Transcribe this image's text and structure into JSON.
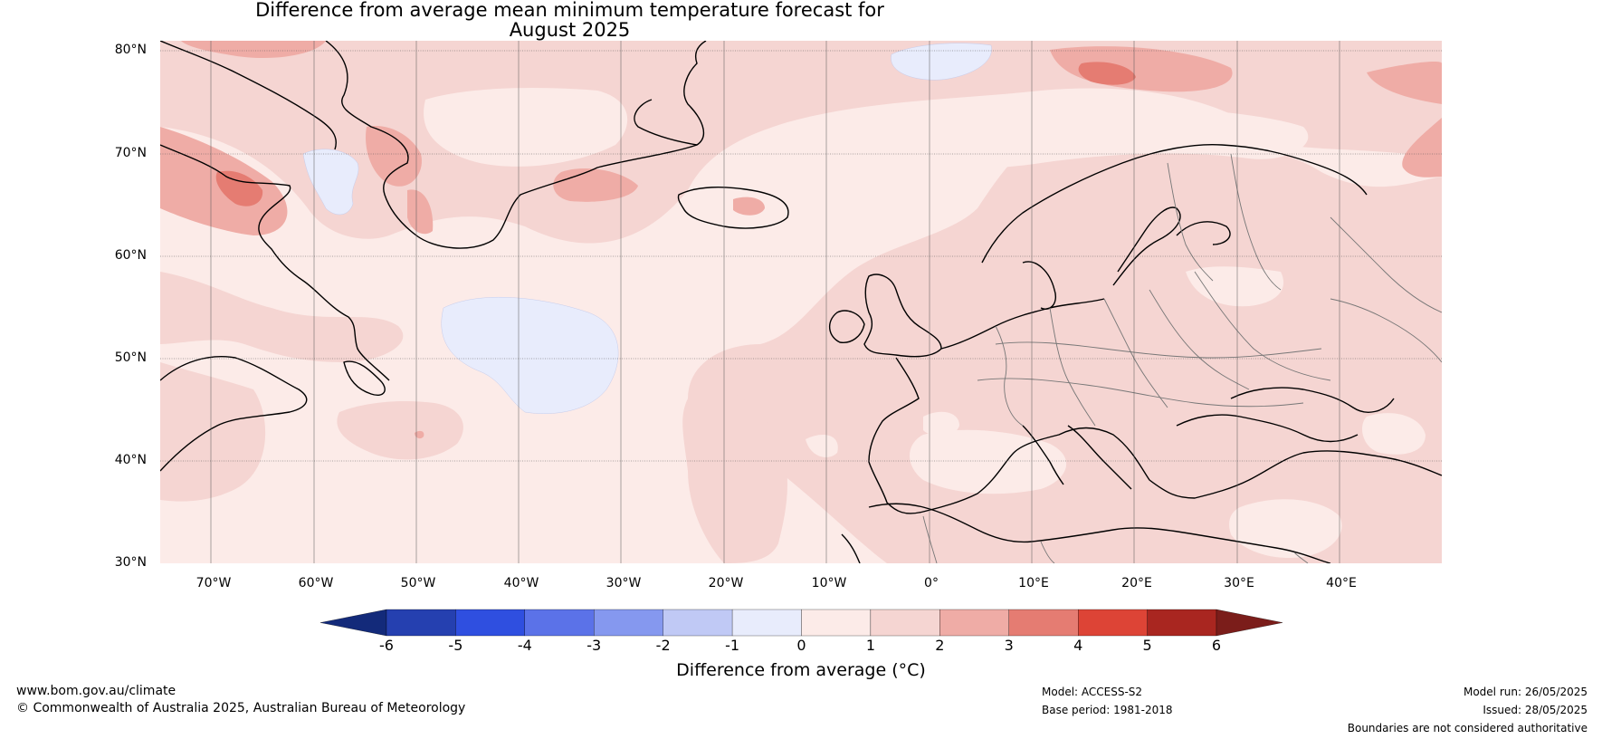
{
  "title": {
    "line1": "Difference from average mean minimum temperature forecast for",
    "line2": "August 2025"
  },
  "map": {
    "lat_labels": [
      "80°N",
      "70°N",
      "60°N",
      "50°N",
      "40°N",
      "30°N"
    ],
    "lon_labels": [
      "70°W",
      "60°W",
      "50°W",
      "40°W",
      "30°W",
      "20°W",
      "10°W",
      "0°",
      "10°E",
      "20°E",
      "30°E",
      "40°E"
    ],
    "extent": {
      "lon_min": -75,
      "lon_max": 50,
      "lat_min": 30,
      "lat_max": 81
    }
  },
  "colorbar": {
    "ticks": [
      "-6",
      "-5",
      "-4",
      "-3",
      "-2",
      "-1",
      "0",
      "1",
      "2",
      "3",
      "4",
      "5",
      "6"
    ],
    "colors": [
      "#132a7a",
      "#2540b0",
      "#2f4fe0",
      "#5b72e8",
      "#8598ef",
      "#c0c9f5",
      "#e8ecfc",
      "#fcebe8",
      "#f5d5d2",
      "#efaca6",
      "#e57c72",
      "#dd4436",
      "#a92620",
      "#7b1d1a"
    ],
    "label": "Difference from average (",
    "label_unit": "°C)",
    "label_full": "Difference from average (°C)"
  },
  "footer": {
    "website": "www.bom.gov.au/climate",
    "copyright": "© Commonwealth of Australia 2025, Australian Bureau of Meteorology",
    "model": "Model: ACCESS-S2",
    "base_period": "Base period: 1981-2018",
    "model_run": "Model run: 26/05/2025",
    "issued": "Issued: 28/05/2025",
    "disclaimer": "Boundaries are not considered authoritative"
  }
}
